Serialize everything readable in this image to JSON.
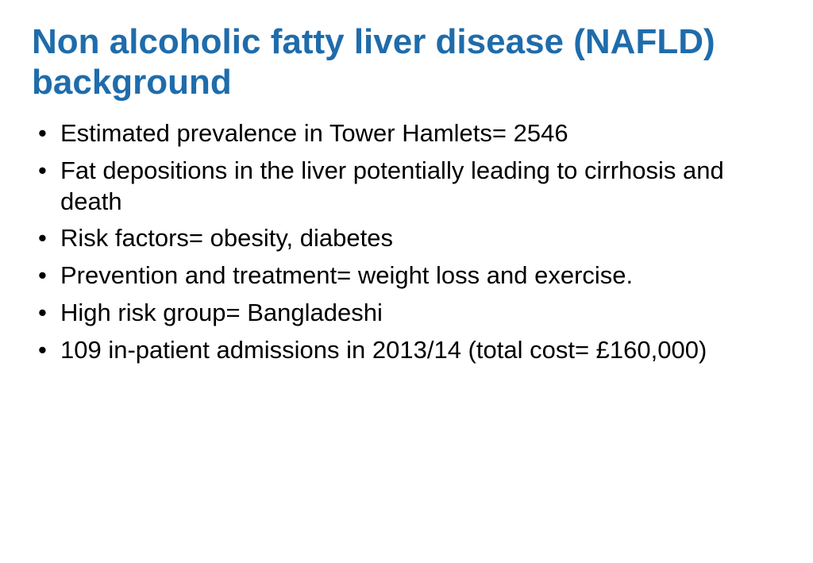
{
  "slide": {
    "title": "Non alcoholic fatty liver disease (NAFLD) background",
    "title_color": "#1f6cab",
    "title_fontsize": 44,
    "title_fontweight": "bold",
    "body_color": "#000000",
    "body_fontsize": 31,
    "background_color": "#ffffff",
    "bullets": [
      "Estimated prevalence in Tower Hamlets= 2546",
      "Fat depositions in the liver potentially leading to cirrhosis and death",
      "Risk factors= obesity, diabetes",
      "Prevention and treatment= weight loss and exercise.",
      "High risk group= Bangladeshi",
      "109 in-patient admissions in 2013/14 (total cost= £160,000)"
    ]
  }
}
